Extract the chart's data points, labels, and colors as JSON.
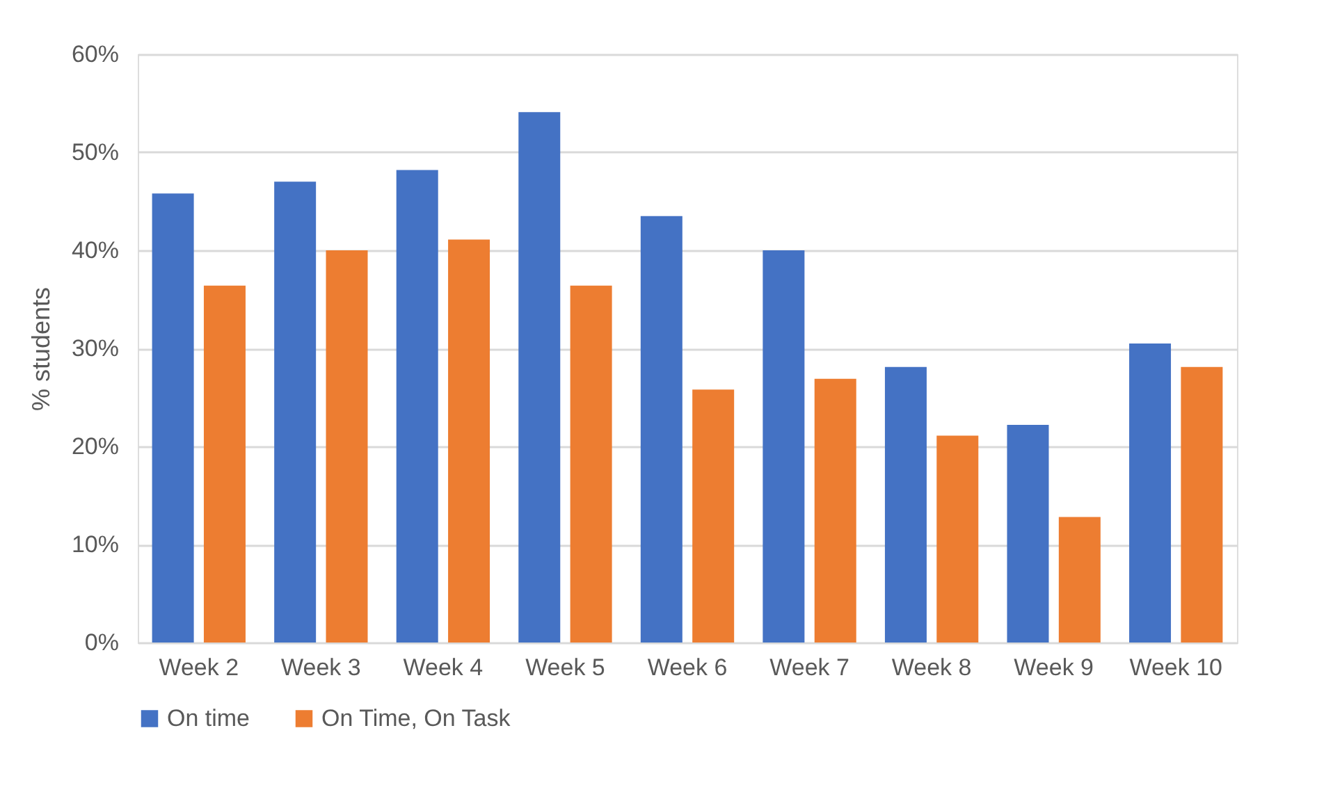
{
  "chart_data": {
    "type": "bar",
    "ylabel": "% students",
    "categories": [
      "Week 2",
      "Week 3",
      "Week 4",
      "Week 5",
      "Week 6",
      "Week 7",
      "Week 8",
      "Week 9",
      "Week 10"
    ],
    "series": [
      {
        "name": "On time",
        "color": "#4472c4",
        "values": [
          45.8,
          47.0,
          48.2,
          54.1,
          43.5,
          40.0,
          28.1,
          22.2,
          30.5
        ]
      },
      {
        "name": "On Time, On Task",
        "color": "#ed7d31",
        "values": [
          36.4,
          40.0,
          41.1,
          36.4,
          25.8,
          26.9,
          21.1,
          12.8,
          28.1
        ]
      }
    ],
    "ylim": [
      0,
      60
    ],
    "yticks": [
      {
        "value": 0,
        "label": "0%"
      },
      {
        "value": 10,
        "label": "10%"
      },
      {
        "value": 20,
        "label": "20%"
      },
      {
        "value": 30,
        "label": "30%"
      },
      {
        "value": 40,
        "label": "40%"
      },
      {
        "value": 50,
        "label": "50%"
      },
      {
        "value": 60,
        "label": "60%"
      }
    ],
    "grid": "y",
    "legend": "bottom"
  }
}
